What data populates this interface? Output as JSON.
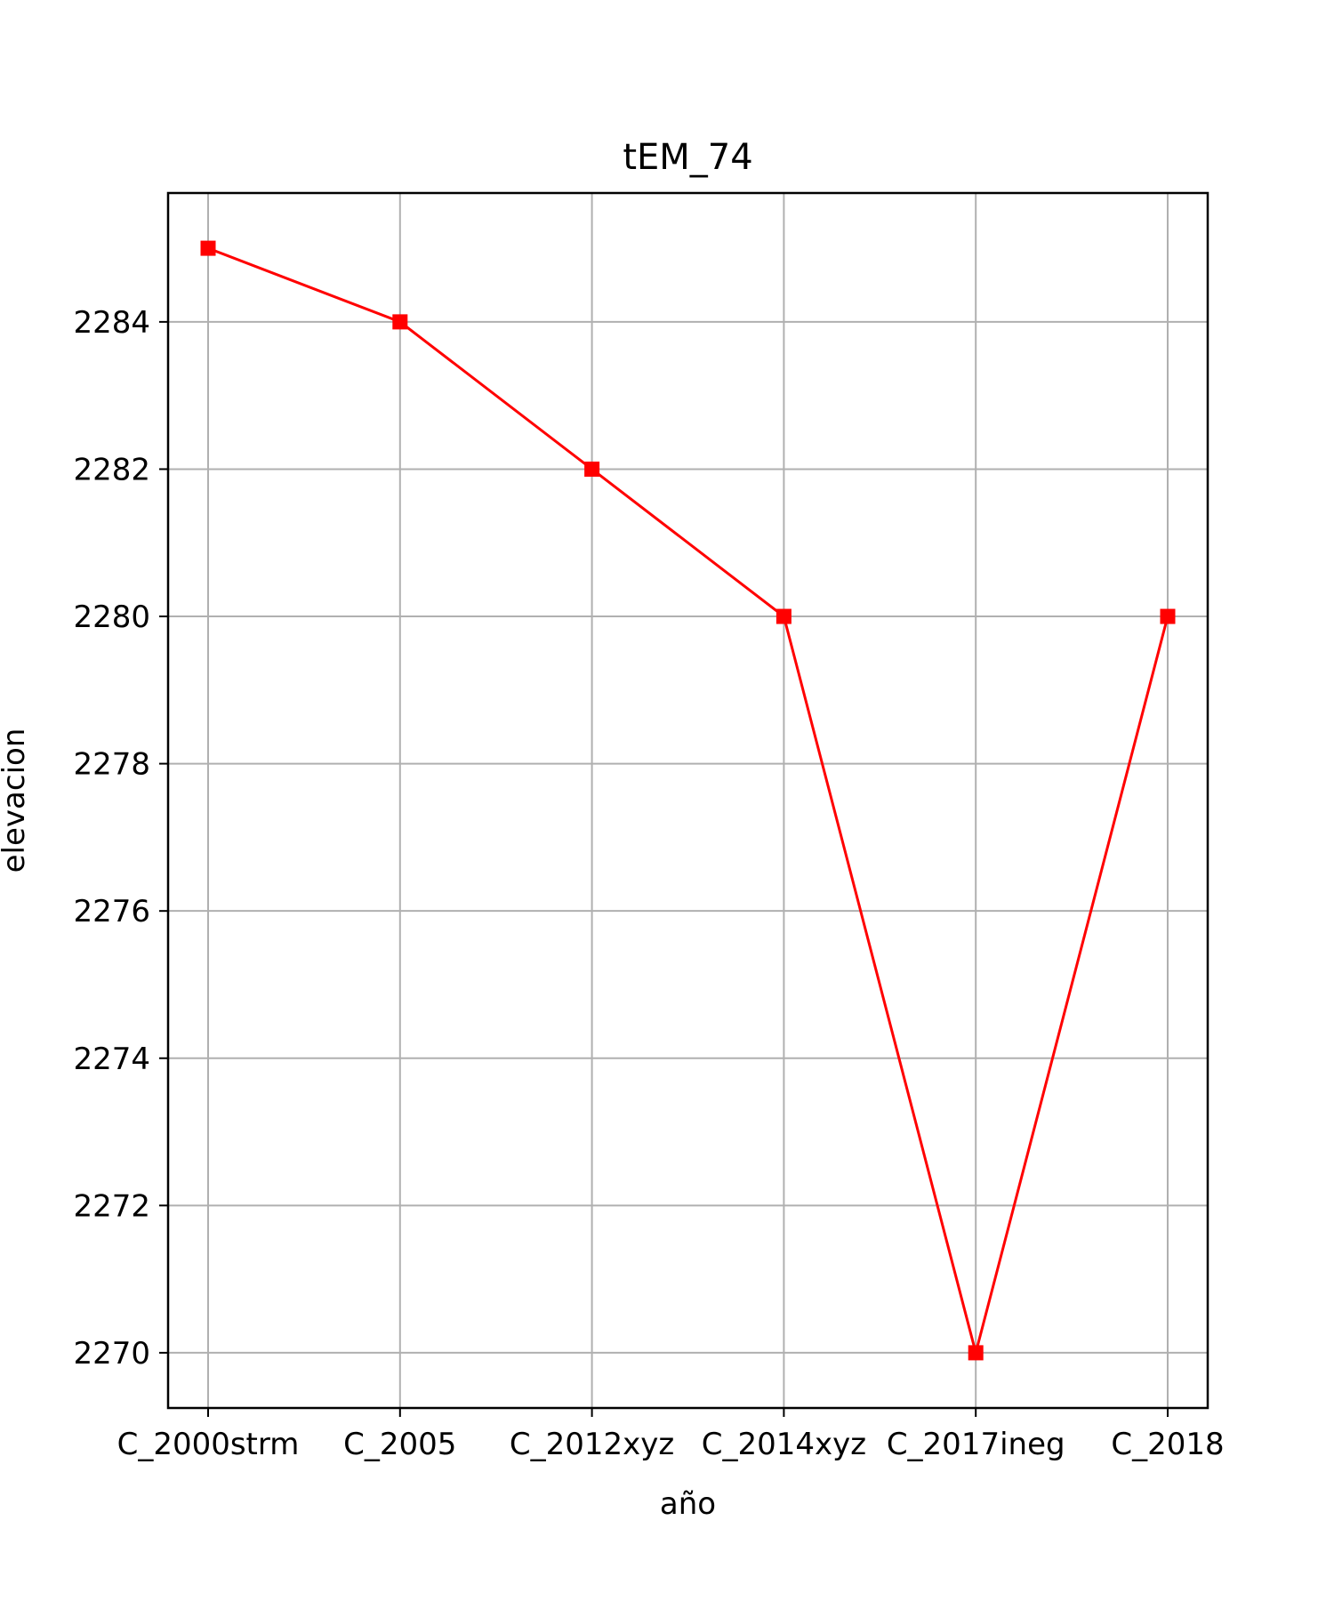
{
  "chart_data": {
    "type": "line",
    "title": "tEM_74",
    "xlabel": "año",
    "ylabel": "elevacion",
    "categories": [
      "C_2000strm",
      "C_2005",
      "C_2012xyz",
      "C_2014xyz",
      "C_2017ineg",
      "C_2018"
    ],
    "series": [
      {
        "values": [
          2285,
          2284,
          2282,
          2280,
          2270,
          2280
        ],
        "color": "#ff0000",
        "marker": "square"
      }
    ],
    "ylim": [
      2269.25,
      2285.75
    ],
    "yticks": [
      2270,
      2272,
      2274,
      2276,
      2278,
      2280,
      2282,
      2284
    ],
    "grid": true
  }
}
